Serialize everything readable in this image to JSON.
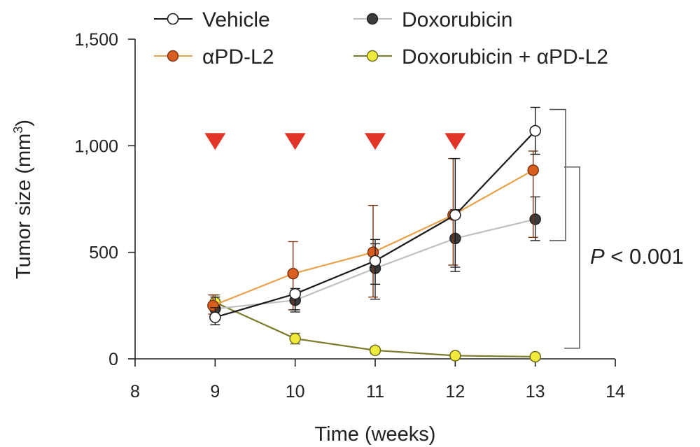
{
  "chart_data": {
    "type": "line",
    "title": "",
    "xlabel": "Time (weeks)",
    "ylabel": "Tumor size (mm3)",
    "ylabel_main": "Tumor size (mm",
    "ylabel_sup": "3",
    "ylabel_close": ")",
    "xlim": [
      8,
      14
    ],
    "ylim": [
      0,
      1500
    ],
    "x_ticks": [
      8,
      9,
      10,
      11,
      12,
      13,
      14
    ],
    "x_tick_labels": [
      "8",
      "9",
      "10",
      "11",
      "12",
      "13",
      "14"
    ],
    "y_ticks": [
      0,
      500,
      1000,
      1500
    ],
    "y_tick_labels": [
      "0",
      "500",
      "1,000",
      "1,500"
    ],
    "grid": false,
    "legend_position": "top",
    "series": [
      {
        "name": "Vehicle",
        "line_color": "#1a1a1a",
        "marker_fill": "#ffffff",
        "marker_stroke": "#1a1a1a",
        "x": [
          9,
          10,
          11,
          12,
          13
        ],
        "values": [
          195,
          305,
          460,
          675,
          1070
        ],
        "err_low": [
          160,
          230,
          350,
          430,
          960
        ],
        "err_high": [
          240,
          330,
          560,
          940,
          1180
        ]
      },
      {
        "name": "αPD-L2",
        "line_color": "#e8a24d",
        "marker_fill": "#d95f20",
        "marker_stroke": "#7a3410",
        "x": [
          9,
          10,
          11,
          12,
          13
        ],
        "values": [
          250,
          400,
          500,
          675,
          885
        ],
        "err_low": [
          210,
          230,
          290,
          440,
          570
        ],
        "err_high": [
          300,
          550,
          720,
          940,
          975
        ]
      },
      {
        "name": "Doxorubicin",
        "line_color": "#c0c0c0",
        "marker_fill": "#3c3c3c",
        "marker_stroke": "#222222",
        "x": [
          9,
          10,
          11,
          12,
          13
        ],
        "values": [
          235,
          275,
          425,
          565,
          655
        ],
        "err_low": [
          190,
          220,
          280,
          410,
          555
        ],
        "err_high": [
          290,
          320,
          540,
          700,
          760
        ]
      },
      {
        "name": "Doxorubicin + αPD-L2",
        "line_color": "#7a7a2a",
        "marker_fill": "#f0ea3c",
        "marker_stroke": "#6b6b1e",
        "x": [
          9,
          10,
          11,
          12,
          13
        ],
        "values": [
          265,
          95,
          40,
          15,
          10
        ],
        "err_low": [
          230,
          70,
          25,
          5,
          2
        ],
        "err_high": [
          300,
          120,
          55,
          25,
          18
        ]
      }
    ],
    "treatment_markers": {
      "x": [
        9,
        10,
        11,
        12
      ],
      "y": 1020,
      "color": "#e03527"
    },
    "brackets": [
      {
        "from": 1170,
        "to": 555
      },
      {
        "from": 900,
        "to": 50
      }
    ],
    "annotation": {
      "label": "P",
      "operator": " < 0.001"
    }
  }
}
